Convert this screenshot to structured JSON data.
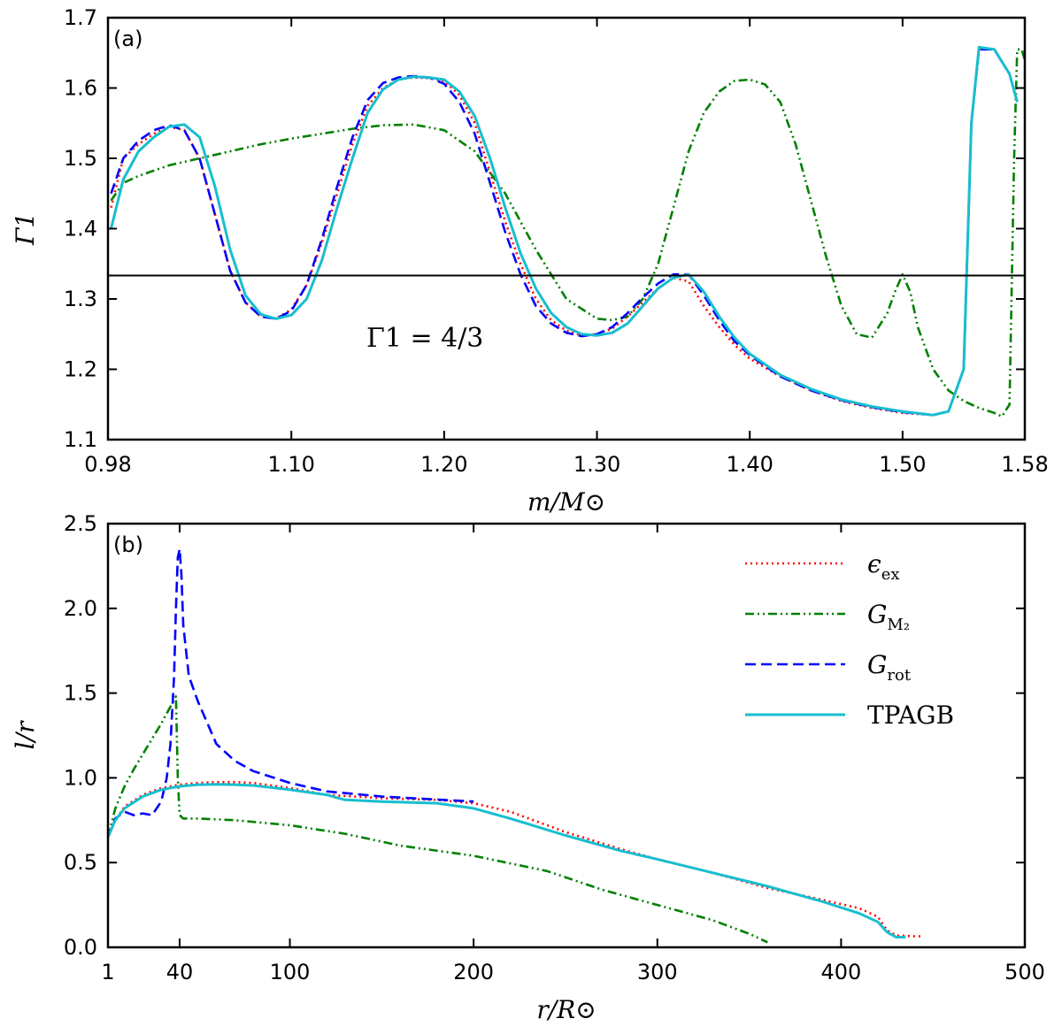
{
  "chart_data": [
    {
      "panel": "(a)",
      "type": "line",
      "xlabel": "m/M⊙",
      "ylabel": "Γ1",
      "xlim": [
        0.98,
        1.58
      ],
      "ylim": [
        1.1,
        1.7
      ],
      "xticks": [
        0.98,
        1.1,
        1.2,
        1.3,
        1.4,
        1.5,
        1.58
      ],
      "xtick_labels": [
        "0.98",
        "1.10",
        "1.20",
        "1.30",
        "1.40",
        "1.50",
        "1.58"
      ],
      "yticks": [
        1.1,
        1.2,
        1.3,
        1.4,
        1.5,
        1.6,
        1.7
      ],
      "ytick_labels": [
        "1.1",
        "1.2",
        "1.3",
        "1.4",
        "1.5",
        "1.6",
        "1.7"
      ],
      "hline": {
        "y": 1.3333,
        "label": "Γ1 = 4/3"
      },
      "series": [
        {
          "key": "eps",
          "color": "#ff0000",
          "dash": "2,4",
          "x": [
            0.982,
            0.99,
            1.0,
            1.01,
            1.02,
            1.03,
            1.04,
            1.05,
            1.06,
            1.07,
            1.08,
            1.09,
            1.1,
            1.11,
            1.12,
            1.13,
            1.14,
            1.15,
            1.16,
            1.17,
            1.18,
            1.19,
            1.2,
            1.21,
            1.22,
            1.23,
            1.24,
            1.25,
            1.26,
            1.27,
            1.28,
            1.29,
            1.3,
            1.31,
            1.32,
            1.33,
            1.34,
            1.35,
            1.36,
            1.37,
            1.38,
            1.39,
            1.4,
            1.42,
            1.44,
            1.46,
            1.48,
            1.5,
            1.52,
            1.53,
            1.54,
            1.545,
            1.55,
            1.56,
            1.57
          ],
          "y": [
            1.43,
            1.5,
            1.52,
            1.535,
            1.545,
            1.54,
            1.5,
            1.42,
            1.34,
            1.295,
            1.275,
            1.272,
            1.285,
            1.32,
            1.38,
            1.45,
            1.52,
            1.575,
            1.6,
            1.612,
            1.615,
            1.614,
            1.61,
            1.59,
            1.55,
            1.48,
            1.41,
            1.35,
            1.3,
            1.27,
            1.255,
            1.248,
            1.25,
            1.258,
            1.275,
            1.295,
            1.315,
            1.33,
            1.325,
            1.29,
            1.26,
            1.235,
            1.215,
            1.19,
            1.17,
            1.155,
            1.145,
            1.138,
            1.135,
            1.14,
            1.2,
            1.55,
            1.655,
            1.655,
            1.62
          ]
        },
        {
          "key": "gm2",
          "color": "#008000",
          "dash": "10,4,2,4,2,4",
          "x": [
            0.982,
            0.99,
            1.0,
            1.02,
            1.04,
            1.06,
            1.08,
            1.1,
            1.12,
            1.14,
            1.16,
            1.18,
            1.2,
            1.22,
            1.24,
            1.26,
            1.28,
            1.3,
            1.31,
            1.32,
            1.33,
            1.34,
            1.35,
            1.36,
            1.37,
            1.38,
            1.39,
            1.4,
            1.41,
            1.42,
            1.43,
            1.44,
            1.45,
            1.46,
            1.47,
            1.48,
            1.49,
            1.495,
            1.5,
            1.505,
            1.51,
            1.52,
            1.53,
            1.54,
            1.55,
            1.56,
            1.565,
            1.57,
            1.573,
            1.575,
            1.578,
            1.58
          ],
          "y": [
            1.44,
            1.465,
            1.475,
            1.49,
            1.5,
            1.51,
            1.52,
            1.528,
            1.535,
            1.542,
            1.547,
            1.548,
            1.54,
            1.51,
            1.45,
            1.37,
            1.3,
            1.272,
            1.27,
            1.275,
            1.3,
            1.35,
            1.43,
            1.51,
            1.565,
            1.595,
            1.61,
            1.612,
            1.605,
            1.58,
            1.52,
            1.44,
            1.36,
            1.29,
            1.25,
            1.245,
            1.28,
            1.31,
            1.335,
            1.31,
            1.26,
            1.2,
            1.17,
            1.155,
            1.145,
            1.138,
            1.133,
            1.15,
            1.5,
            1.655,
            1.655,
            1.64
          ]
        },
        {
          "key": "grot",
          "color": "#0000ff",
          "dash": "12,6",
          "x": [
            0.982,
            0.99,
            1.0,
            1.01,
            1.02,
            1.03,
            1.04,
            1.05,
            1.06,
            1.07,
            1.08,
            1.09,
            1.1,
            1.11,
            1.12,
            1.13,
            1.14,
            1.15,
            1.16,
            1.17,
            1.18,
            1.19,
            1.2,
            1.21,
            1.22,
            1.23,
            1.24,
            1.25,
            1.26,
            1.27,
            1.28,
            1.29,
            1.3,
            1.31,
            1.32,
            1.33,
            1.34,
            1.35,
            1.36,
            1.37,
            1.38,
            1.39,
            1.4,
            1.42,
            1.44,
            1.46,
            1.48,
            1.5,
            1.52,
            1.53,
            1.54,
            1.545,
            1.55,
            1.56,
            1.57
          ],
          "y": [
            1.45,
            1.5,
            1.525,
            1.54,
            1.547,
            1.54,
            1.5,
            1.42,
            1.34,
            1.295,
            1.275,
            1.272,
            1.283,
            1.32,
            1.385,
            1.46,
            1.53,
            1.583,
            1.607,
            1.615,
            1.617,
            1.615,
            1.606,
            1.58,
            1.535,
            1.465,
            1.395,
            1.335,
            1.29,
            1.265,
            1.252,
            1.247,
            1.25,
            1.26,
            1.28,
            1.302,
            1.322,
            1.335,
            1.335,
            1.305,
            1.27,
            1.24,
            1.22,
            1.19,
            1.17,
            1.156,
            1.146,
            1.139,
            1.135,
            1.14,
            1.2,
            1.55,
            1.655,
            1.655,
            1.62
          ]
        },
        {
          "key": "tpagb",
          "color": "#17becf",
          "dash": "",
          "x": [
            0.982,
            0.99,
            1.0,
            1.01,
            1.02,
            1.03,
            1.04,
            1.05,
            1.06,
            1.07,
            1.08,
            1.09,
            1.1,
            1.11,
            1.12,
            1.13,
            1.14,
            1.15,
            1.16,
            1.17,
            1.18,
            1.19,
            1.2,
            1.21,
            1.22,
            1.23,
            1.24,
            1.25,
            1.26,
            1.27,
            1.28,
            1.29,
            1.3,
            1.31,
            1.32,
            1.33,
            1.34,
            1.35,
            1.36,
            1.37,
            1.38,
            1.39,
            1.4,
            1.42,
            1.44,
            1.46,
            1.48,
            1.5,
            1.52,
            1.53,
            1.54,
            1.545,
            1.55,
            1.56,
            1.57,
            1.575
          ],
          "y": [
            1.4,
            1.47,
            1.51,
            1.53,
            1.545,
            1.548,
            1.53,
            1.46,
            1.37,
            1.305,
            1.278,
            1.272,
            1.277,
            1.3,
            1.355,
            1.43,
            1.5,
            1.565,
            1.598,
            1.612,
            1.616,
            1.615,
            1.612,
            1.595,
            1.56,
            1.5,
            1.43,
            1.365,
            1.315,
            1.28,
            1.26,
            1.25,
            1.248,
            1.252,
            1.265,
            1.29,
            1.315,
            1.33,
            1.335,
            1.31,
            1.275,
            1.245,
            1.222,
            1.192,
            1.172,
            1.157,
            1.147,
            1.14,
            1.135,
            1.14,
            1.2,
            1.55,
            1.658,
            1.655,
            1.62,
            1.58
          ]
        }
      ]
    },
    {
      "panel": "(b)",
      "type": "line",
      "xlabel": "r/R⊙",
      "ylabel": "l/r",
      "xlim": [
        1,
        500
      ],
      "ylim": [
        0.0,
        2.5
      ],
      "xticks": [
        1,
        40,
        100,
        200,
        300,
        400,
        500
      ],
      "xtick_labels": [
        "1",
        "40",
        "100",
        "200",
        "300",
        "400",
        "500"
      ],
      "yticks": [
        0.0,
        0.5,
        1.0,
        1.5,
        2.0,
        2.5
      ],
      "ytick_labels": [
        "0.0",
        "0.5",
        "1.0",
        "1.5",
        "2.0",
        "2.5"
      ],
      "legend": {
        "placement": "top-right",
        "items": [
          {
            "key": "eps",
            "label_main": "ϵ",
            "label_sub": "ex"
          },
          {
            "key": "gm2",
            "label_main": "G",
            "label_sub": "M₂"
          },
          {
            "key": "grot",
            "label_main": "G",
            "label_sub": "rot"
          },
          {
            "key": "tpagb",
            "label_main": "TPAGB",
            "label_sub": ""
          }
        ]
      },
      "series": [
        {
          "key": "eps",
          "color": "#ff0000",
          "dash": "2,4",
          "x": [
            1,
            5,
            10,
            20,
            30,
            40,
            50,
            60,
            70,
            80,
            100,
            120,
            150,
            180,
            200,
            220,
            250,
            280,
            300,
            330,
            360,
            390,
            410,
            420,
            425,
            430,
            440,
            445
          ],
          "y": [
            0.65,
            0.75,
            0.83,
            0.9,
            0.94,
            0.96,
            0.97,
            0.975,
            0.975,
            0.97,
            0.94,
            0.9,
            0.88,
            0.87,
            0.85,
            0.8,
            0.68,
            0.58,
            0.52,
            0.44,
            0.35,
            0.28,
            0.23,
            0.18,
            0.1,
            0.07,
            0.065,
            0.065
          ]
        },
        {
          "key": "gm2",
          "color": "#008000",
          "dash": "10,4,2,4,2,4",
          "x": [
            1,
            5,
            10,
            15,
            20,
            25,
            30,
            35,
            38,
            39,
            40,
            42,
            50,
            70,
            100,
            130,
            160,
            200,
            240,
            270,
            300,
            330,
            350,
            360
          ],
          "y": [
            0.65,
            0.82,
            0.95,
            1.05,
            1.14,
            1.23,
            1.32,
            1.42,
            1.48,
            1.0,
            0.78,
            0.76,
            0.76,
            0.75,
            0.72,
            0.67,
            0.6,
            0.54,
            0.45,
            0.34,
            0.25,
            0.16,
            0.08,
            0.03
          ]
        },
        {
          "key": "grot",
          "color": "#0000ff",
          "dash": "12,6",
          "x": [
            1,
            5,
            10,
            15,
            20,
            25,
            30,
            33,
            35,
            37,
            38,
            39,
            40,
            41,
            42,
            45,
            50,
            60,
            70,
            80,
            100,
            120,
            150,
            200
          ],
          "y": [
            0.65,
            0.76,
            0.8,
            0.78,
            0.79,
            0.78,
            0.86,
            1.0,
            1.2,
            1.6,
            2.0,
            2.3,
            2.35,
            2.2,
            1.9,
            1.6,
            1.45,
            1.2,
            1.1,
            1.04,
            0.97,
            0.92,
            0.89,
            0.86
          ]
        },
        {
          "key": "tpagb",
          "color": "#17becf",
          "dash": "",
          "x": [
            1,
            5,
            10,
            20,
            30,
            40,
            50,
            60,
            70,
            80,
            100,
            120,
            130,
            150,
            180,
            200,
            220,
            250,
            280,
            300,
            330,
            360,
            390,
            410,
            420,
            425,
            430,
            435
          ],
          "y": [
            0.65,
            0.75,
            0.82,
            0.89,
            0.93,
            0.95,
            0.96,
            0.962,
            0.96,
            0.955,
            0.93,
            0.9,
            0.87,
            0.86,
            0.85,
            0.82,
            0.76,
            0.66,
            0.57,
            0.52,
            0.44,
            0.36,
            0.27,
            0.2,
            0.15,
            0.09,
            0.06,
            0.06
          ]
        }
      ]
    }
  ]
}
